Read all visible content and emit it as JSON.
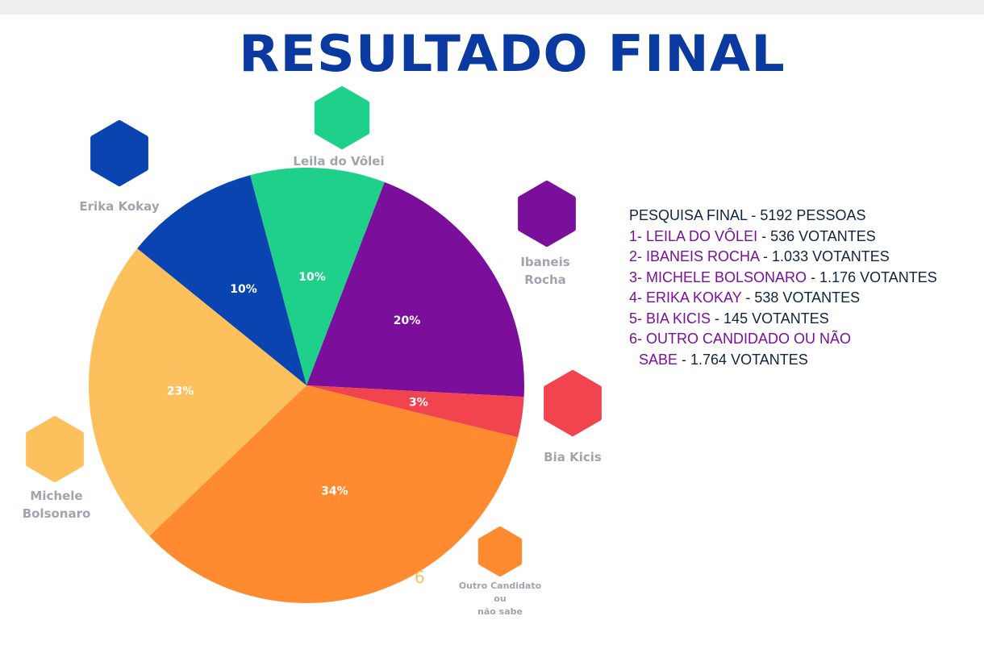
{
  "title": "RESULTADO FINAL",
  "results": {
    "header": "PESQUISA FINAL - 5192 PESSOAS",
    "rows": [
      {
        "name": "1- LEILA DO VÔLEI",
        "value": " - 536 VOTANTES"
      },
      {
        "name": "2- IBANEIS ROCHA",
        "value": " - 1.033 VOTANTES"
      },
      {
        "name": "3- MICHELE BOLSONARO",
        "value": " - 1.176 VOTANTES"
      },
      {
        "name": "4- ERIKA KOKAY",
        "value": " - 538 VOTANTES"
      },
      {
        "name": "5- BIA KICIS",
        "value": " - 145 VOTANTES"
      }
    ],
    "last_row": {
      "line1": "6- OUTRO CANDIDADO OU NÃO",
      "line2_name": "SABE",
      "line2_value": " - 1.764 VOTANTES"
    }
  },
  "stray_mark": "6",
  "chart_data": {
    "type": "pie",
    "slices": [
      {
        "label": "Leila do Vôlei",
        "value": 10,
        "value_label": "10%",
        "color": "#1fd08a"
      },
      {
        "label": "Ibaneis Rocha",
        "value": 20,
        "value_label": "20%",
        "color": "#7b0f9b"
      },
      {
        "label": "Bia Kicis",
        "value": 3,
        "value_label": "3%",
        "color": "#f2444f"
      },
      {
        "label": "Outro Candidato ou não sabe",
        "value": 34,
        "value_label": "34%",
        "color": "#ff8a30"
      },
      {
        "label": "Michele Bolsonaro",
        "value": 23,
        "value_label": "23%",
        "color": "#fcc05c"
      },
      {
        "label": "Erika Kokay",
        "value": 10,
        "value_label": "10%",
        "color": "#0a44b0"
      }
    ]
  }
}
